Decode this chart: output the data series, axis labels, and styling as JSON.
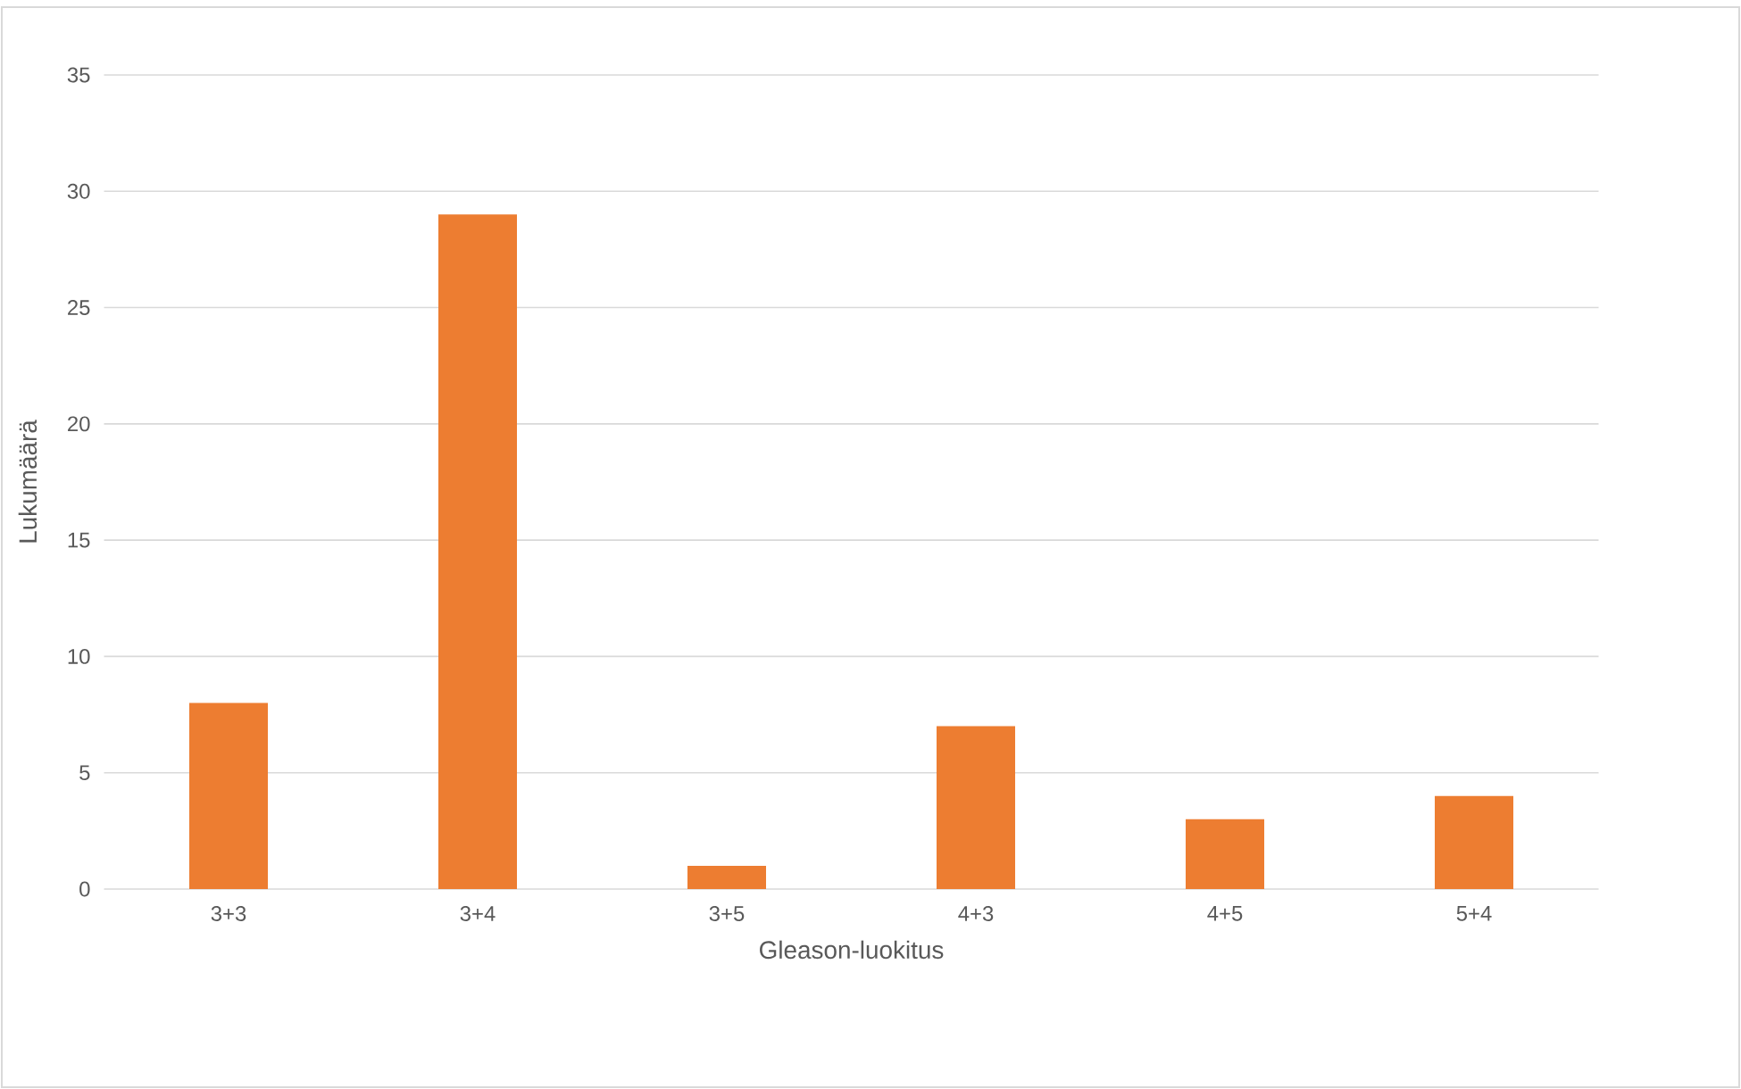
{
  "chart_data": {
    "type": "bar",
    "xlabel": "Gleason-luokitus",
    "ylabel": "Lukumäärä",
    "categories": [
      "3+3",
      "3+4",
      "3+5",
      "4+3",
      "4+5",
      "5+4"
    ],
    "values": [
      8,
      29,
      1,
      7,
      3,
      4
    ],
    "color": "#ed7d31",
    "ylim": [
      0,
      35
    ],
    "yticks": [
      0,
      5,
      10,
      15,
      20,
      25,
      30,
      35
    ],
    "grid": "y"
  }
}
